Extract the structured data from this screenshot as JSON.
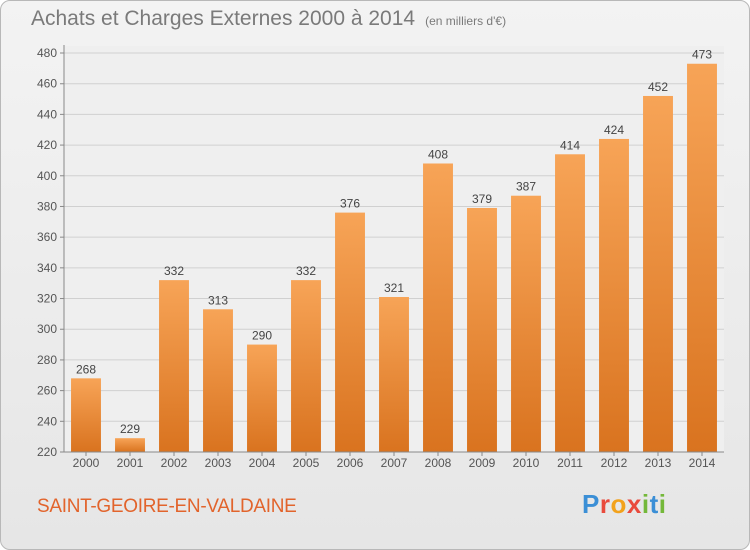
{
  "header": {
    "title": "Achats et Charges Externes 2000 à 2014",
    "unit_note": "(en milliers d'€)"
  },
  "footer": {
    "commune": "SAINT-GEOIRE-EN-VALDAINE",
    "logo_text": "Proxiti"
  },
  "colors": {
    "bar_light": "#f7a457",
    "bar_dark": "#d9731f",
    "commune_text": "#e2642c",
    "axis_text": "#555555"
  },
  "chart_data": {
    "type": "bar",
    "title": "Achats et Charges Externes 2000 à 2014",
    "subtitle": "(en milliers d'€)",
    "categories": [
      "2000",
      "2001",
      "2002",
      "2003",
      "2004",
      "2005",
      "2006",
      "2007",
      "2008",
      "2009",
      "2010",
      "2011",
      "2012",
      "2013",
      "2014"
    ],
    "values": [
      268,
      229,
      332,
      313,
      290,
      332,
      376,
      321,
      408,
      379,
      387,
      414,
      424,
      452,
      473
    ],
    "ylim": [
      220,
      480
    ],
    "yticks": [
      220,
      240,
      260,
      280,
      300,
      320,
      340,
      360,
      380,
      400,
      420,
      440,
      460,
      480
    ],
    "grid": true,
    "data_labels": true
  }
}
